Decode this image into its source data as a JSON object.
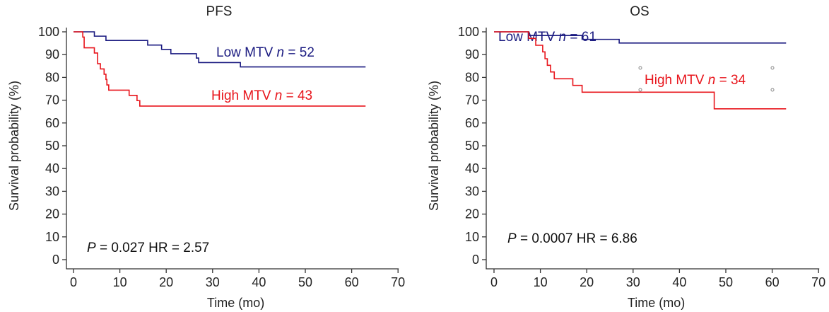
{
  "chart_data": [
    {
      "type": "line",
      "title": "PFS",
      "xlabel": "Time (mo)",
      "ylabel": "Survival probability (%)",
      "xlim": [
        0,
        70
      ],
      "ylim": [
        0,
        100
      ],
      "xticks": [
        "0",
        "10",
        "20",
        "30",
        "40",
        "50",
        "60",
        "70"
      ],
      "yticks": [
        "0",
        "10",
        "20",
        "30",
        "40",
        "50",
        "60",
        "70",
        "80",
        "90",
        "100"
      ],
      "grid": false,
      "annotation": {
        "p_label": "P",
        "p_text": " = 0.027  HR = 2.57"
      },
      "series": [
        {
          "name": "Low MTV",
          "n_label": "n",
          "n_text": " = 52",
          "color": "#1a1a80",
          "points": [
            [
              0,
              100
            ],
            [
              4.5,
              98.1
            ],
            [
              7,
              96.2
            ],
            [
              16,
              94.2
            ],
            [
              19,
              92.3
            ],
            [
              21,
              90.4
            ],
            [
              26.5,
              88.5
            ],
            [
              27,
              86.5
            ],
            [
              36,
              84.6
            ],
            [
              63,
              84.6
            ]
          ]
        },
        {
          "name": "High MTV",
          "n_label": "n",
          "n_text": " = 43",
          "color": "#e8141b",
          "points": [
            [
              0,
              100
            ],
            [
              2,
              97.7
            ],
            [
              2.3,
              93
            ],
            [
              4.5,
              90.7
            ],
            [
              5.2,
              86
            ],
            [
              5.8,
              83.7
            ],
            [
              6.6,
              81.4
            ],
            [
              7,
              79.1
            ],
            [
              7.2,
              76.7
            ],
            [
              7.6,
              74.4
            ],
            [
              12,
              72.1
            ],
            [
              13.7,
              69.8
            ],
            [
              14.3,
              67.4
            ],
            [
              63,
              67.4
            ]
          ]
        }
      ]
    },
    {
      "type": "line",
      "title": "OS",
      "xlabel": "Time (mo)",
      "ylabel": "Survival probability (%)",
      "xlim": [
        0,
        70
      ],
      "ylim": [
        0,
        100
      ],
      "xticks": [
        "0",
        "10",
        "20",
        "30",
        "40",
        "50",
        "60",
        "70"
      ],
      "yticks": [
        "0",
        "10",
        "20",
        "30",
        "40",
        "50",
        "60",
        "70",
        "80",
        "90",
        "100"
      ],
      "grid": false,
      "annotation": {
        "p_label": "P",
        "p_text": " = 0.0007  HR = 6.86"
      },
      "series": [
        {
          "name": "Low MTV",
          "n_label": "n",
          "n_text": " = 61",
          "color": "#1a1a80",
          "points": [
            [
              0,
              100
            ],
            [
              7.5,
              98.4
            ],
            [
              19,
              96.7
            ],
            [
              27,
              95.1
            ],
            [
              63,
              95.1
            ]
          ]
        },
        {
          "name": "High MTV",
          "n_label": "n",
          "n_text": " = 34",
          "color": "#e8141b",
          "points": [
            [
              0,
              100
            ],
            [
              7.5,
              97.1
            ],
            [
              9,
              94.1
            ],
            [
              10.5,
              91.2
            ],
            [
              11,
              88.2
            ],
            [
              11.5,
              85.3
            ],
            [
              12.2,
              82.4
            ],
            [
              13,
              79.4
            ],
            [
              17,
              76.5
            ],
            [
              19,
              73.5
            ],
            [
              47.5,
              66.2
            ],
            [
              63,
              66.2
            ]
          ]
        }
      ]
    }
  ]
}
